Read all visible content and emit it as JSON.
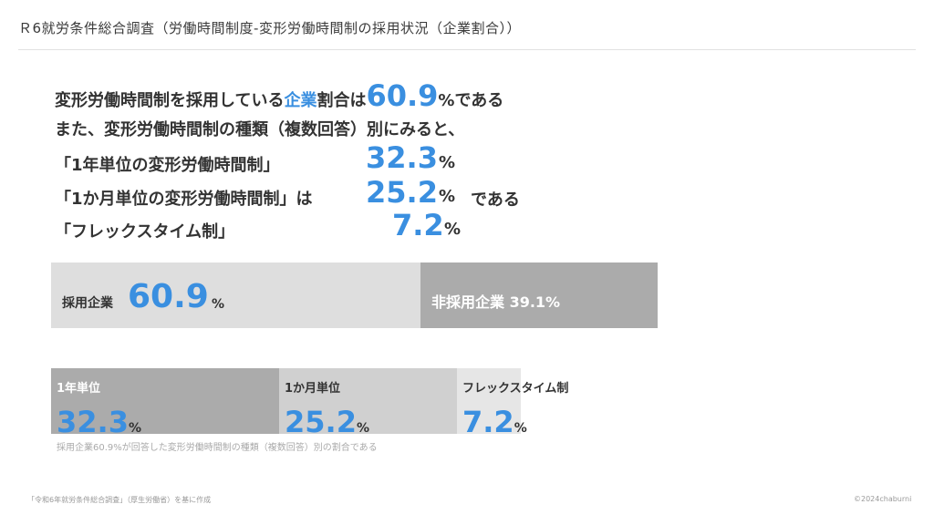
{
  "page": {
    "title": "Ｒ6就労条件総合調査（労働時間制度-変形労働時間制の採用状況（企業割合））",
    "source": "「令和6年就労条件総合調査」（厚生労働省）を基に作成",
    "copyright": "©2024chaburni"
  },
  "headline": {
    "line1_pre": "変形労働時間制を採用している",
    "line1_accent": "企業",
    "line1_mid": "割合は",
    "line1_num": "60.9",
    "line1_post": "%である",
    "line2": "また、変形労働時間制の種類（複数回答）別にみると、",
    "line3_label": "「1年単位の変形労働時間制」",
    "line3_num": "32.3",
    "line3_pct": "%",
    "line4_label": "「1か月単位の変形労働時間制」は",
    "line4_num": "25.2",
    "line4_pct": "%",
    "line4_tail": "である",
    "line5_label": "「フレックスタイム制」",
    "line5_num": "7.2",
    "line5_pct": "%"
  },
  "chart_data": [
    {
      "type": "bar",
      "orientation": "horizontal-stacked",
      "categories": [
        "採用企業",
        "非採用企業"
      ],
      "values": [
        60.9,
        39.1
      ],
      "colors": [
        "#dedede",
        "#ababab"
      ],
      "labels": {
        "adopt_label": "採用企業",
        "adopt_value": "60.9",
        "adopt_pct": "%",
        "non_label": "非採用企業 39.1%"
      }
    },
    {
      "type": "bar",
      "orientation": "horizontal",
      "categories": [
        "1年単位",
        "1か月単位",
        "フレックスタイム制"
      ],
      "values": [
        32.3,
        25.2,
        7.2
      ],
      "colors": [
        "#ababab",
        "#d0d0d0",
        "#e6e6e6"
      ],
      "value_labels": [
        "32.3",
        "25.2",
        "7.2"
      ],
      "pct_symbol": "%",
      "note": "採用企業60.9%が回答した変形労働時間制の種類（複数回答）別の割合である"
    }
  ]
}
